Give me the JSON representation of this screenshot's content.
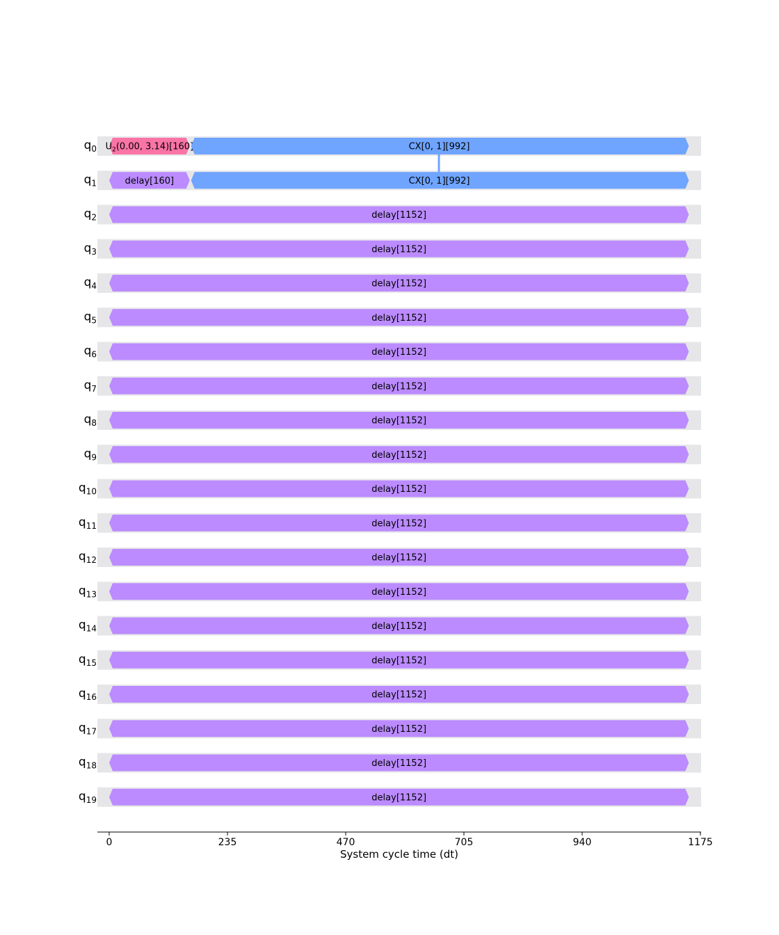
{
  "chart_data": {
    "type": "timeline",
    "xlabel": "System cycle time (dt)",
    "xlim": [
      0,
      1175
    ],
    "xticks": [
      0,
      235,
      470,
      705,
      940,
      1175
    ],
    "colors": {
      "lane_background": "#e6e6e8",
      "u2_gate": "#fa74a6",
      "cx_gate": "#6fa4ff",
      "delay_gate": "#bb8bff",
      "axis": "#000000"
    },
    "qubits": [
      {
        "base": "q",
        "index": "0",
        "gates": [
          {
            "type": "u2",
            "label_main": "U",
            "label_sub": "2",
            "label_rest": "(0.00, 3.14)[160]",
            "start": 0,
            "end": 160
          },
          {
            "type": "cx",
            "label": "CX[0, 1][992]",
            "start": 160,
            "end": 1152
          }
        ]
      },
      {
        "base": "q",
        "index": "1",
        "gates": [
          {
            "type": "delay",
            "label": "delay[160]",
            "start": 0,
            "end": 160
          },
          {
            "type": "cx",
            "label": "CX[0, 1][992]",
            "start": 160,
            "end": 1152
          }
        ]
      },
      {
        "base": "q",
        "index": "2",
        "gates": [
          {
            "type": "delay",
            "label": "delay[1152]",
            "start": 0,
            "end": 1152
          }
        ]
      },
      {
        "base": "q",
        "index": "3",
        "gates": [
          {
            "type": "delay",
            "label": "delay[1152]",
            "start": 0,
            "end": 1152
          }
        ]
      },
      {
        "base": "q",
        "index": "4",
        "gates": [
          {
            "type": "delay",
            "label": "delay[1152]",
            "start": 0,
            "end": 1152
          }
        ]
      },
      {
        "base": "q",
        "index": "5",
        "gates": [
          {
            "type": "delay",
            "label": "delay[1152]",
            "start": 0,
            "end": 1152
          }
        ]
      },
      {
        "base": "q",
        "index": "6",
        "gates": [
          {
            "type": "delay",
            "label": "delay[1152]",
            "start": 0,
            "end": 1152
          }
        ]
      },
      {
        "base": "q",
        "index": "7",
        "gates": [
          {
            "type": "delay",
            "label": "delay[1152]",
            "start": 0,
            "end": 1152
          }
        ]
      },
      {
        "base": "q",
        "index": "8",
        "gates": [
          {
            "type": "delay",
            "label": "delay[1152]",
            "start": 0,
            "end": 1152
          }
        ]
      },
      {
        "base": "q",
        "index": "9",
        "gates": [
          {
            "type": "delay",
            "label": "delay[1152]",
            "start": 0,
            "end": 1152
          }
        ]
      },
      {
        "base": "q",
        "index": "10",
        "gates": [
          {
            "type": "delay",
            "label": "delay[1152]",
            "start": 0,
            "end": 1152
          }
        ]
      },
      {
        "base": "q",
        "index": "11",
        "gates": [
          {
            "type": "delay",
            "label": "delay[1152]",
            "start": 0,
            "end": 1152
          }
        ]
      },
      {
        "base": "q",
        "index": "12",
        "gates": [
          {
            "type": "delay",
            "label": "delay[1152]",
            "start": 0,
            "end": 1152
          }
        ]
      },
      {
        "base": "q",
        "index": "13",
        "gates": [
          {
            "type": "delay",
            "label": "delay[1152]",
            "start": 0,
            "end": 1152
          }
        ]
      },
      {
        "base": "q",
        "index": "14",
        "gates": [
          {
            "type": "delay",
            "label": "delay[1152]",
            "start": 0,
            "end": 1152
          }
        ]
      },
      {
        "base": "q",
        "index": "15",
        "gates": [
          {
            "type": "delay",
            "label": "delay[1152]",
            "start": 0,
            "end": 1152
          }
        ]
      },
      {
        "base": "q",
        "index": "16",
        "gates": [
          {
            "type": "delay",
            "label": "delay[1152]",
            "start": 0,
            "end": 1152
          }
        ]
      },
      {
        "base": "q",
        "index": "17",
        "gates": [
          {
            "type": "delay",
            "label": "delay[1152]",
            "start": 0,
            "end": 1152
          }
        ]
      },
      {
        "base": "q",
        "index": "18",
        "gates": [
          {
            "type": "delay",
            "label": "delay[1152]",
            "start": 0,
            "end": 1152
          }
        ]
      },
      {
        "base": "q",
        "index": "19",
        "gates": [
          {
            "type": "delay",
            "label": "delay[1152]",
            "start": 0,
            "end": 1152
          }
        ]
      }
    ],
    "links": [
      {
        "from_qubit": 0,
        "to_qubit": 1,
        "time": 656
      }
    ]
  }
}
